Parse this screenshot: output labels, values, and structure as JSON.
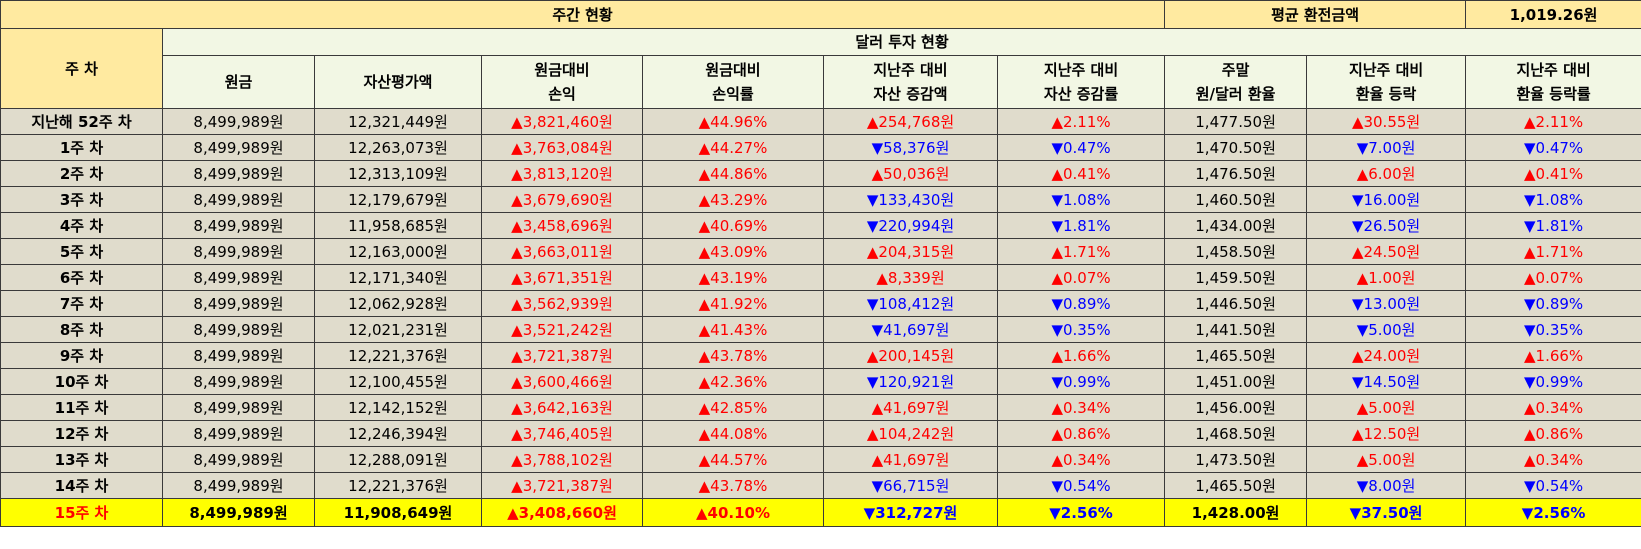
{
  "summary": {
    "weekly_status_label": "주간 현황",
    "avg_exchange_label": "평균 환전금액",
    "avg_exchange_value": "1,019.26원"
  },
  "headers": {
    "week": "주 차",
    "dollar_investment": "달러 투자 현황",
    "columns": [
      [
        "원금"
      ],
      [
        "자산평가액"
      ],
      [
        "원금대비",
        "손익"
      ],
      [
        "원금대비",
        "손익률"
      ],
      [
        "지난주 대비",
        "자산 증감액"
      ],
      [
        "지난주 대비",
        "자산 증감률"
      ],
      [
        "주말",
        "원/달러 환율"
      ],
      [
        "지난주 대비",
        "환율 등락"
      ],
      [
        "지난주 대비",
        "환율 등락률"
      ]
    ]
  },
  "colors": {
    "up": "#ff0000",
    "down": "#0000ff",
    "header_yellow": "#ffeaa0",
    "header_cream": "#f2f7e4",
    "row_bg": "#e0dccc",
    "highlight": "#ffff00"
  },
  "rows": [
    {
      "week": "지난해 52주 차",
      "principal": "8,499,989원",
      "asset": "12,321,449원",
      "pl": "▲3,821,460원",
      "pl_dir": "up",
      "pl_rate": "▲44.96%",
      "pl_rate_dir": "up",
      "asset_chg": "▲254,768원",
      "asset_chg_dir": "up",
      "asset_chg_rate": "▲2.11%",
      "asset_chg_rate_dir": "up",
      "fx": "1,477.50원",
      "fx_chg": "▲30.55원",
      "fx_chg_dir": "up",
      "fx_chg_rate": "▲2.11%",
      "fx_chg_rate_dir": "up"
    },
    {
      "week": "1주 차",
      "principal": "8,499,989원",
      "asset": "12,263,073원",
      "pl": "▲3,763,084원",
      "pl_dir": "up",
      "pl_rate": "▲44.27%",
      "pl_rate_dir": "up",
      "asset_chg": "▼58,376원",
      "asset_chg_dir": "down",
      "asset_chg_rate": "▼0.47%",
      "asset_chg_rate_dir": "down",
      "fx": "1,470.50원",
      "fx_chg": "▼7.00원",
      "fx_chg_dir": "down",
      "fx_chg_rate": "▼0.47%",
      "fx_chg_rate_dir": "down"
    },
    {
      "week": "2주 차",
      "principal": "8,499,989원",
      "asset": "12,313,109원",
      "pl": "▲3,813,120원",
      "pl_dir": "up",
      "pl_rate": "▲44.86%",
      "pl_rate_dir": "up",
      "asset_chg": "▲50,036원",
      "asset_chg_dir": "up",
      "asset_chg_rate": "▲0.41%",
      "asset_chg_rate_dir": "up",
      "fx": "1,476.50원",
      "fx_chg": "▲6.00원",
      "fx_chg_dir": "up",
      "fx_chg_rate": "▲0.41%",
      "fx_chg_rate_dir": "up"
    },
    {
      "week": "3주 차",
      "principal": "8,499,989원",
      "asset": "12,179,679원",
      "pl": "▲3,679,690원",
      "pl_dir": "up",
      "pl_rate": "▲43.29%",
      "pl_rate_dir": "up",
      "asset_chg": "▼133,430원",
      "asset_chg_dir": "down",
      "asset_chg_rate": "▼1.08%",
      "asset_chg_rate_dir": "down",
      "fx": "1,460.50원",
      "fx_chg": "▼16.00원",
      "fx_chg_dir": "down",
      "fx_chg_rate": "▼1.08%",
      "fx_chg_rate_dir": "down"
    },
    {
      "week": "4주 차",
      "principal": "8,499,989원",
      "asset": "11,958,685원",
      "pl": "▲3,458,696원",
      "pl_dir": "up",
      "pl_rate": "▲40.69%",
      "pl_rate_dir": "up",
      "asset_chg": "▼220,994원",
      "asset_chg_dir": "down",
      "asset_chg_rate": "▼1.81%",
      "asset_chg_rate_dir": "down",
      "fx": "1,434.00원",
      "fx_chg": "▼26.50원",
      "fx_chg_dir": "down",
      "fx_chg_rate": "▼1.81%",
      "fx_chg_rate_dir": "down"
    },
    {
      "week": "5주 차",
      "principal": "8,499,989원",
      "asset": "12,163,000원",
      "pl": "▲3,663,011원",
      "pl_dir": "up",
      "pl_rate": "▲43.09%",
      "pl_rate_dir": "up",
      "asset_chg": "▲204,315원",
      "asset_chg_dir": "up",
      "asset_chg_rate": "▲1.71%",
      "asset_chg_rate_dir": "up",
      "fx": "1,458.50원",
      "fx_chg": "▲24.50원",
      "fx_chg_dir": "up",
      "fx_chg_rate": "▲1.71%",
      "fx_chg_rate_dir": "up"
    },
    {
      "week": "6주 차",
      "principal": "8,499,989원",
      "asset": "12,171,340원",
      "pl": "▲3,671,351원",
      "pl_dir": "up",
      "pl_rate": "▲43.19%",
      "pl_rate_dir": "up",
      "asset_chg": "▲8,339원",
      "asset_chg_dir": "up",
      "asset_chg_rate": "▲0.07%",
      "asset_chg_rate_dir": "up",
      "fx": "1,459.50원",
      "fx_chg": "▲1.00원",
      "fx_chg_dir": "up",
      "fx_chg_rate": "▲0.07%",
      "fx_chg_rate_dir": "up"
    },
    {
      "week": "7주 차",
      "principal": "8,499,989원",
      "asset": "12,062,928원",
      "pl": "▲3,562,939원",
      "pl_dir": "up",
      "pl_rate": "▲41.92%",
      "pl_rate_dir": "up",
      "asset_chg": "▼108,412원",
      "asset_chg_dir": "down",
      "asset_chg_rate": "▼0.89%",
      "asset_chg_rate_dir": "down",
      "fx": "1,446.50원",
      "fx_chg": "▼13.00원",
      "fx_chg_dir": "down",
      "fx_chg_rate": "▼0.89%",
      "fx_chg_rate_dir": "down"
    },
    {
      "week": "8주 차",
      "principal": "8,499,989원",
      "asset": "12,021,231원",
      "pl": "▲3,521,242원",
      "pl_dir": "up",
      "pl_rate": "▲41.43%",
      "pl_rate_dir": "up",
      "asset_chg": "▼41,697원",
      "asset_chg_dir": "down",
      "asset_chg_rate": "▼0.35%",
      "asset_chg_rate_dir": "down",
      "fx": "1,441.50원",
      "fx_chg": "▼5.00원",
      "fx_chg_dir": "down",
      "fx_chg_rate": "▼0.35%",
      "fx_chg_rate_dir": "down"
    },
    {
      "week": "9주 차",
      "principal": "8,499,989원",
      "asset": "12,221,376원",
      "pl": "▲3,721,387원",
      "pl_dir": "up",
      "pl_rate": "▲43.78%",
      "pl_rate_dir": "up",
      "asset_chg": "▲200,145원",
      "asset_chg_dir": "up",
      "asset_chg_rate": "▲1.66%",
      "asset_chg_rate_dir": "up",
      "fx": "1,465.50원",
      "fx_chg": "▲24.00원",
      "fx_chg_dir": "up",
      "fx_chg_rate": "▲1.66%",
      "fx_chg_rate_dir": "up"
    },
    {
      "week": "10주 차",
      "principal": "8,499,989원",
      "asset": "12,100,455원",
      "pl": "▲3,600,466원",
      "pl_dir": "up",
      "pl_rate": "▲42.36%",
      "pl_rate_dir": "up",
      "asset_chg": "▼120,921원",
      "asset_chg_dir": "down",
      "asset_chg_rate": "▼0.99%",
      "asset_chg_rate_dir": "down",
      "fx": "1,451.00원",
      "fx_chg": "▼14.50원",
      "fx_chg_dir": "down",
      "fx_chg_rate": "▼0.99%",
      "fx_chg_rate_dir": "down"
    },
    {
      "week": "11주 차",
      "principal": "8,499,989원",
      "asset": "12,142,152원",
      "pl": "▲3,642,163원",
      "pl_dir": "up",
      "pl_rate": "▲42.85%",
      "pl_rate_dir": "up",
      "asset_chg": "▲41,697원",
      "asset_chg_dir": "up",
      "asset_chg_rate": "▲0.34%",
      "asset_chg_rate_dir": "up",
      "fx": "1,456.00원",
      "fx_chg": "▲5.00원",
      "fx_chg_dir": "up",
      "fx_chg_rate": "▲0.34%",
      "fx_chg_rate_dir": "up"
    },
    {
      "week": "12주 차",
      "principal": "8,499,989원",
      "asset": "12,246,394원",
      "pl": "▲3,746,405원",
      "pl_dir": "up",
      "pl_rate": "▲44.08%",
      "pl_rate_dir": "up",
      "asset_chg": "▲104,242원",
      "asset_chg_dir": "up",
      "asset_chg_rate": "▲0.86%",
      "asset_chg_rate_dir": "up",
      "fx": "1,468.50원",
      "fx_chg": "▲12.50원",
      "fx_chg_dir": "up",
      "fx_chg_rate": "▲0.86%",
      "fx_chg_rate_dir": "up"
    },
    {
      "week": "13주 차",
      "principal": "8,499,989원",
      "asset": "12,288,091원",
      "pl": "▲3,788,102원",
      "pl_dir": "up",
      "pl_rate": "▲44.57%",
      "pl_rate_dir": "up",
      "asset_chg": "▲41,697원",
      "asset_chg_dir": "up",
      "asset_chg_rate": "▲0.34%",
      "asset_chg_rate_dir": "up",
      "fx": "1,473.50원",
      "fx_chg": "▲5.00원",
      "fx_chg_dir": "up",
      "fx_chg_rate": "▲0.34%",
      "fx_chg_rate_dir": "up"
    },
    {
      "week": "14주 차",
      "principal": "8,499,989원",
      "asset": "12,221,376원",
      "pl": "▲3,721,387원",
      "pl_dir": "up",
      "pl_rate": "▲43.78%",
      "pl_rate_dir": "up",
      "asset_chg": "▼66,715원",
      "asset_chg_dir": "down",
      "asset_chg_rate": "▼0.54%",
      "asset_chg_rate_dir": "down",
      "fx": "1,465.50원",
      "fx_chg": "▼8.00원",
      "fx_chg_dir": "down",
      "fx_chg_rate": "▼0.54%",
      "fx_chg_rate_dir": "down"
    },
    {
      "week": "15주 차",
      "principal": "8,499,989원",
      "asset": "11,908,649원",
      "pl": "▲3,408,660원",
      "pl_dir": "up",
      "pl_rate": "▲40.10%",
      "pl_rate_dir": "up",
      "asset_chg": "▼312,727원",
      "asset_chg_dir": "down",
      "asset_chg_rate": "▼2.56%",
      "asset_chg_rate_dir": "down",
      "fx": "1,428.00원",
      "fx_chg": "▼37.50원",
      "fx_chg_dir": "down",
      "fx_chg_rate": "▼2.56%",
      "fx_chg_rate_dir": "down",
      "current": true
    }
  ]
}
